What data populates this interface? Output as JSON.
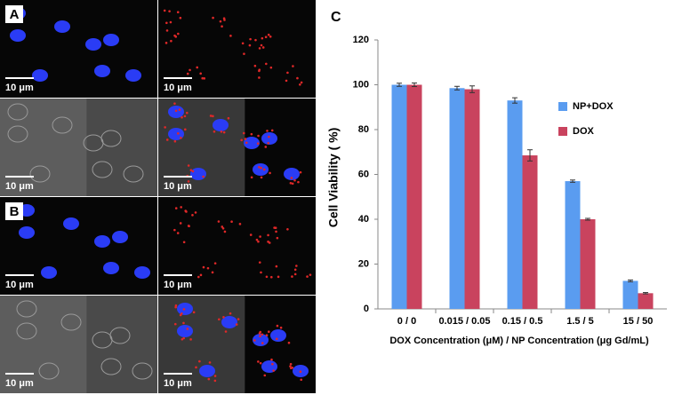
{
  "micrographs": [
    {
      "label": "A",
      "scale_bars": [
        "10 μm",
        "10 μm",
        "10 μm",
        "10 μm"
      ]
    },
    {
      "label": "B",
      "scale_bars": [
        "10 μm",
        "10 μm",
        "10 μm",
        "10 μm"
      ]
    }
  ],
  "chart_data": {
    "type": "bar",
    "panel_label": "C",
    "y_label": "Cell Viability ( %)",
    "x_label": "DOX Concentration (μM) / NP Concentration (μg Gd/mL)",
    "categories": [
      "0 / 0",
      "0.015 / 0.05",
      "0.15 / 0.5",
      "1.5 / 5",
      "15 / 50"
    ],
    "series": [
      {
        "name": "NP+DOX",
        "color": "#5a9cf0",
        "values": [
          100,
          98.5,
          93,
          57,
          12.5
        ],
        "errors": [
          0.7,
          0.8,
          1.2,
          0.5,
          0.4
        ]
      },
      {
        "name": "DOX",
        "color": "#c9435e",
        "values": [
          100,
          98,
          68.5,
          40,
          7
        ],
        "errors": [
          0.8,
          1.5,
          2.5,
          0.4,
          0.3
        ]
      }
    ],
    "ylim": [
      0,
      120
    ],
    "yticks": [
      0,
      20,
      40,
      60,
      80,
      100,
      120
    ],
    "grid": false,
    "legend": "right"
  }
}
